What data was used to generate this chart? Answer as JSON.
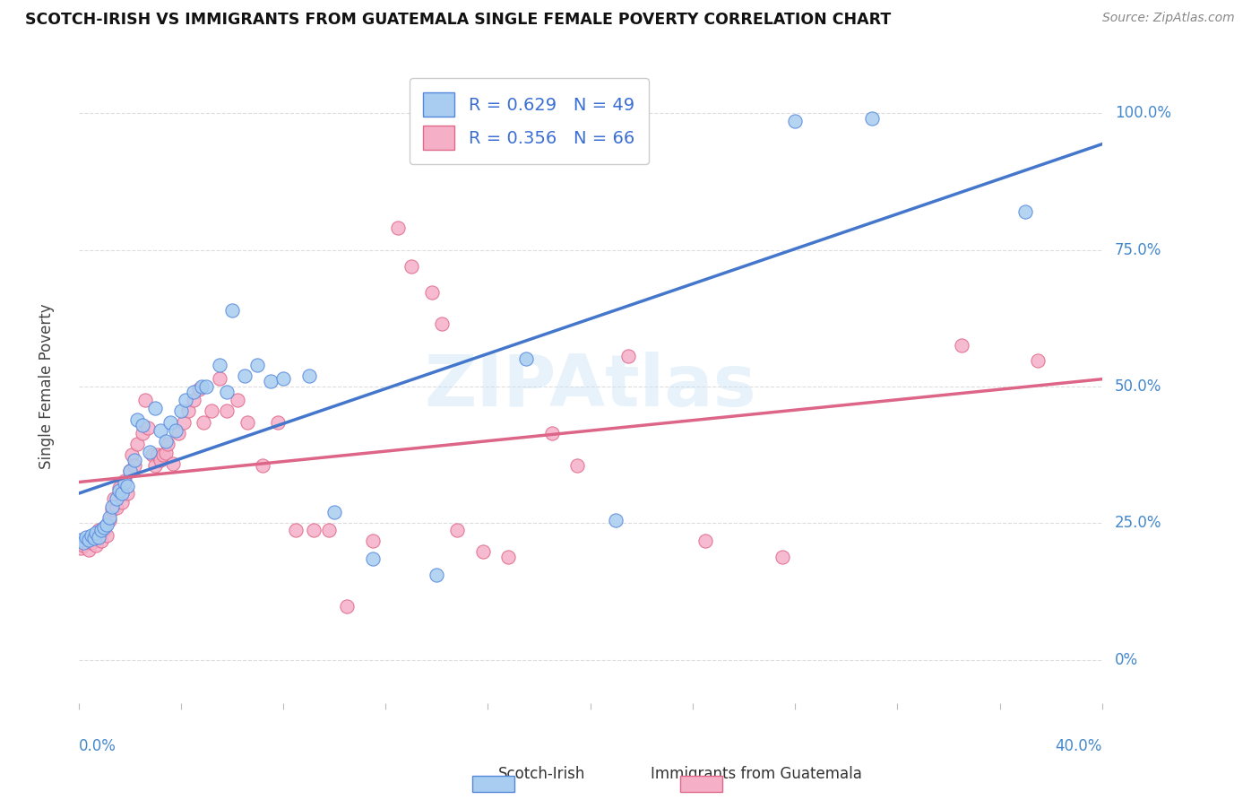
{
  "title": "SCOTCH-IRISH VS IMMIGRANTS FROM GUATEMALA SINGLE FEMALE POVERTY CORRELATION CHART",
  "source": "Source: ZipAtlas.com",
  "ylabel": "Single Female Poverty",
  "legend_blue_label": "Scotch-Irish",
  "legend_pink_label": "Immigrants from Guatemala",
  "legend_blue_R": "0.629",
  "legend_blue_N": "49",
  "legend_pink_R": "0.356",
  "legend_pink_N": "66",
  "watermark": "ZIPAtlas",
  "blue_fill": "#a8cdf0",
  "blue_edge": "#5588dd",
  "pink_fill": "#f5b0c8",
  "pink_edge": "#e06888",
  "blue_line": "#4477cc",
  "pink_line": "#dd6688",
  "grid_color": "#dddddd",
  "bg_color": "#ffffff",
  "blue_scatter_x": [
    0.001,
    0.002,
    0.003,
    0.004,
    0.005,
    0.006,
    0.007,
    0.008,
    0.009,
    0.01,
    0.011,
    0.012,
    0.013,
    0.015,
    0.016,
    0.017,
    0.018,
    0.019,
    0.02,
    0.022,
    0.023,
    0.025,
    0.028,
    0.03,
    0.032,
    0.034,
    0.036,
    0.038,
    0.04,
    0.042,
    0.045,
    0.048,
    0.05,
    0.055,
    0.058,
    0.06,
    0.065,
    0.07,
    0.075,
    0.08,
    0.09,
    0.1,
    0.115,
    0.14,
    0.175,
    0.21,
    0.28,
    0.31,
    0.37
  ],
  "blue_scatter_y": [
    0.22,
    0.215,
    0.225,
    0.22,
    0.228,
    0.222,
    0.232,
    0.225,
    0.238,
    0.242,
    0.248,
    0.26,
    0.28,
    0.295,
    0.31,
    0.305,
    0.325,
    0.318,
    0.345,
    0.365,
    0.44,
    0.43,
    0.38,
    0.46,
    0.42,
    0.4,
    0.435,
    0.42,
    0.455,
    0.475,
    0.49,
    0.5,
    0.5,
    0.54,
    0.49,
    0.64,
    0.52,
    0.54,
    0.51,
    0.515,
    0.52,
    0.27,
    0.185,
    0.155,
    0.55,
    0.255,
    0.985,
    0.99,
    0.82
  ],
  "pink_scatter_x": [
    0.001,
    0.002,
    0.003,
    0.004,
    0.005,
    0.006,
    0.007,
    0.008,
    0.009,
    0.01,
    0.011,
    0.012,
    0.013,
    0.014,
    0.015,
    0.016,
    0.017,
    0.018,
    0.019,
    0.02,
    0.021,
    0.022,
    0.023,
    0.025,
    0.026,
    0.027,
    0.029,
    0.03,
    0.031,
    0.032,
    0.033,
    0.034,
    0.035,
    0.037,
    0.039,
    0.041,
    0.043,
    0.045,
    0.047,
    0.049,
    0.052,
    0.055,
    0.058,
    0.062,
    0.066,
    0.072,
    0.078,
    0.085,
    0.092,
    0.098,
    0.105,
    0.115,
    0.125,
    0.13,
    0.138,
    0.142,
    0.148,
    0.158,
    0.168,
    0.185,
    0.195,
    0.215,
    0.245,
    0.275,
    0.345,
    0.375
  ],
  "pink_scatter_y": [
    0.205,
    0.21,
    0.218,
    0.202,
    0.215,
    0.225,
    0.21,
    0.238,
    0.218,
    0.238,
    0.228,
    0.255,
    0.275,
    0.295,
    0.278,
    0.315,
    0.288,
    0.328,
    0.305,
    0.345,
    0.375,
    0.355,
    0.395,
    0.415,
    0.475,
    0.425,
    0.375,
    0.355,
    0.375,
    0.365,
    0.375,
    0.378,
    0.395,
    0.358,
    0.415,
    0.435,
    0.455,
    0.475,
    0.495,
    0.435,
    0.455,
    0.515,
    0.455,
    0.475,
    0.435,
    0.355,
    0.435,
    0.238,
    0.238,
    0.238,
    0.098,
    0.218,
    0.79,
    0.72,
    0.672,
    0.615,
    0.238,
    0.198,
    0.188,
    0.415,
    0.355,
    0.555,
    0.218,
    0.188,
    0.575,
    0.548
  ],
  "xmin": 0.0,
  "xmax": 0.4,
  "ymin": -0.08,
  "ymax": 1.08,
  "ytick_vals": [
    0.0,
    0.25,
    0.5,
    0.75,
    1.0
  ],
  "ytick_labels": [
    "0%",
    "25.0%",
    "50.0%",
    "75.0%",
    "100.0%"
  ],
  "xtick_left_label": "0.0%",
  "xtick_right_label": "40.0%"
}
